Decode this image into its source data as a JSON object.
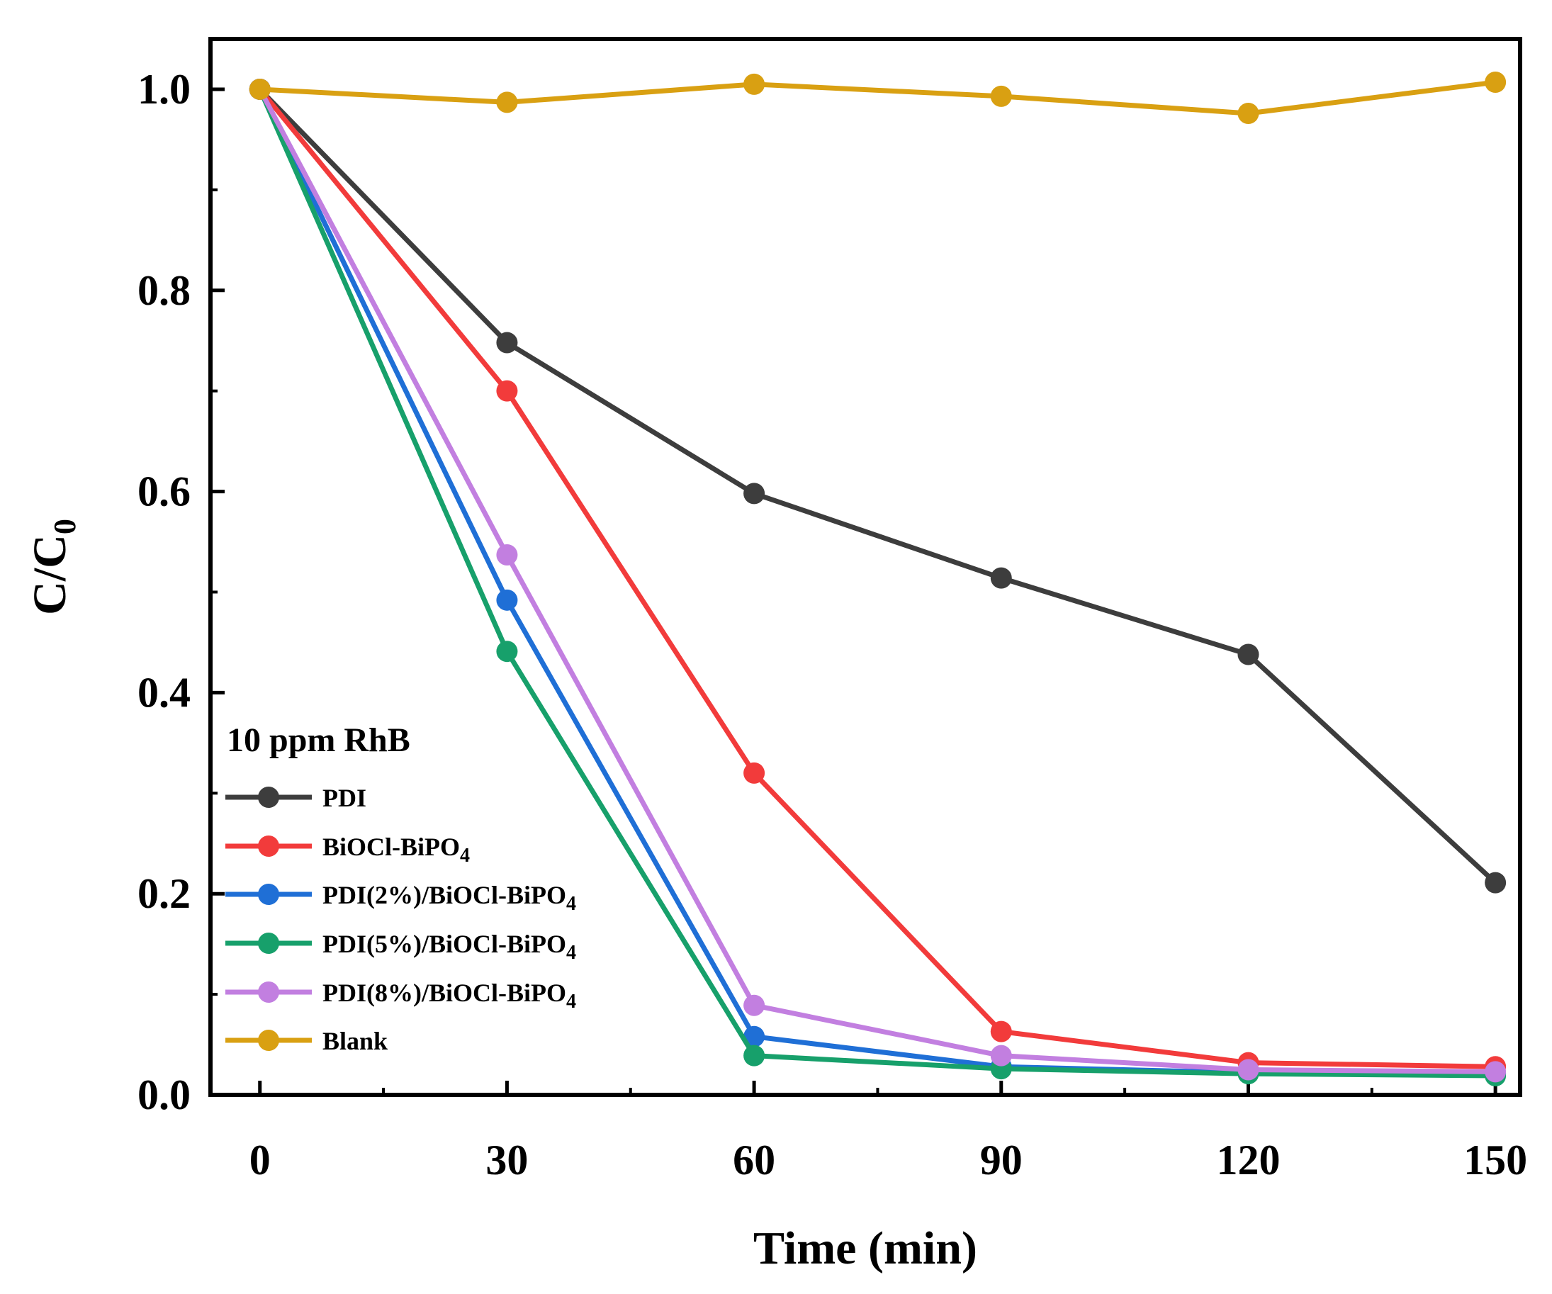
{
  "chart_data": {
    "type": "line",
    "title": "",
    "xlabel": "Time (min)",
    "ylabel": "C/C0",
    "ylabel_main": "C/C",
    "ylabel_sub": "0",
    "xlim": [
      -6,
      153
    ],
    "ylim": [
      0,
      1.05
    ],
    "x": [
      0,
      30,
      60,
      90,
      120,
      150
    ],
    "x_ticks": [
      0,
      30,
      60,
      90,
      120,
      150
    ],
    "y_ticks": [
      0.0,
      0.2,
      0.4,
      0.6,
      0.8,
      1.0
    ],
    "x_tick_labels": [
      "0",
      "30",
      "60",
      "90",
      "120",
      "150"
    ],
    "y_tick_labels": [
      "0.0",
      "0.2",
      "0.4",
      "0.6",
      "0.8",
      "1.0"
    ],
    "grid": false,
    "legend_position": "bottom-left",
    "annotation": "10 ppm RhB",
    "series": [
      {
        "name": "PDI",
        "label_main": "PDI",
        "label_sub": "",
        "color": "#3d3d3d",
        "values": [
          1.0,
          0.748,
          0.598,
          0.514,
          0.438,
          0.211
        ]
      },
      {
        "name": "BiOCl-BiPO4",
        "label_main": "BiOCl-BiPO",
        "label_sub": "4",
        "color": "#f23b3b",
        "values": [
          1.0,
          0.7,
          0.32,
          0.063,
          0.032,
          0.028
        ]
      },
      {
        "name": "PDI(2%)/BiOCl-BiPO4",
        "label_main": "PDI(2%)/BiOCl-BiPO",
        "label_sub": "4",
        "color": "#1f6fd6",
        "values": [
          1.0,
          0.492,
          0.058,
          0.028,
          0.022,
          0.021
        ]
      },
      {
        "name": "PDI(5%)/BiOCl-BiPO4",
        "label_main": "PDI(5%)/BiOCl-BiPO",
        "label_sub": "4",
        "color": "#17a06b",
        "values": [
          1.0,
          0.441,
          0.039,
          0.026,
          0.021,
          0.019
        ]
      },
      {
        "name": "PDI(8%)/BiOCl-BiPO4",
        "label_main": "PDI(8%)/BiOCl-BiPO",
        "label_sub": "4",
        "color": "#c27fe0",
        "values": [
          1.0,
          0.537,
          0.089,
          0.039,
          0.025,
          0.023
        ]
      },
      {
        "name": "Blank",
        "label_main": "Blank",
        "label_sub": "",
        "color": "#d9a012",
        "values": [
          1.0,
          0.987,
          1.005,
          0.993,
          0.976,
          1.007
        ]
      }
    ]
  }
}
